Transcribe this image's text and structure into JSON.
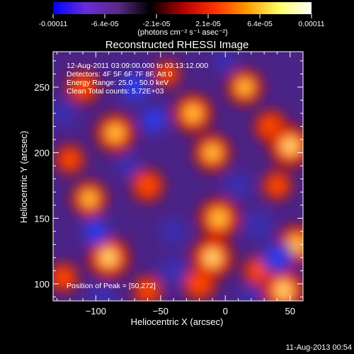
{
  "colorbar": {
    "tick_labels": [
      "-0.00011",
      "-6.4e-05",
      "-2.1e-05",
      "2.1e-05",
      "6.4e-05",
      "0.00011"
    ],
    "unit_label": "(photons cm⁻² s⁻¹ asec⁻²)",
    "colors": [
      "#0000ff",
      "#6a2bd8",
      "#5a2a8a",
      "#000000",
      "#b00000",
      "#ff3000",
      "#ff9a00",
      "#ffff66",
      "#ffffff"
    ]
  },
  "chart_data": {
    "type": "heatmap",
    "title": "Reconstructed RHESSI Image",
    "xlabel": "Heliocentric X (arcsec)",
    "ylabel": "Heliocentric Y (arcsec)",
    "xlim": [
      -133,
      60
    ],
    "ylim": [
      87,
      277
    ],
    "x_ticks": [
      -100,
      -50,
      0,
      50
    ],
    "y_ticks": [
      100,
      150,
      200,
      250
    ],
    "x_tick_labels": [
      "−100",
      "−50",
      "0",
      "50"
    ],
    "y_tick_labels": [
      "100",
      "150",
      "200",
      "250"
    ],
    "value_range": [
      -0.00011,
      0.00011
    ],
    "annotations": [
      "12-Aug-2011 03:09:00.000 to 03:13:12.000",
      "Detectors: 4F 5F 6F 7F 8F, Att 0",
      "Energy Range: 25.0 - 50.0 keV",
      "Clean     Total counts: 5.72E+03"
    ],
    "peak_label": "Position of Peak = [50,272]",
    "peak": [
      50,
      272
    ],
    "blobs": [
      {
        "x": -110,
        "y": 250,
        "a": 0.7
      },
      {
        "x": -85,
        "y": 215,
        "a": 0.9
      },
      {
        "x": -120,
        "y": 195,
        "a": 0.6
      },
      {
        "x": -105,
        "y": 165,
        "a": 0.8
      },
      {
        "x": -90,
        "y": 120,
        "a": 1.0
      },
      {
        "x": -125,
        "y": 105,
        "a": 0.6
      },
      {
        "x": -60,
        "y": 175,
        "a": 0.7
      },
      {
        "x": -45,
        "y": 260,
        "a": 0.5
      },
      {
        "x": -25,
        "y": 230,
        "a": 0.9
      },
      {
        "x": -10,
        "y": 200,
        "a": 0.85
      },
      {
        "x": -5,
        "y": 150,
        "a": 0.95
      },
      {
        "x": -10,
        "y": 120,
        "a": 1.0
      },
      {
        "x": -20,
        "y": 100,
        "a": 0.7
      },
      {
        "x": 15,
        "y": 250,
        "a": 0.8
      },
      {
        "x": 35,
        "y": 220,
        "a": 0.7
      },
      {
        "x": 50,
        "y": 205,
        "a": 1.0
      },
      {
        "x": 40,
        "y": 175,
        "a": 0.6
      },
      {
        "x": 55,
        "y": 130,
        "a": 0.9
      },
      {
        "x": 45,
        "y": 95,
        "a": 1.0
      },
      {
        "x": 25,
        "y": 110,
        "a": 0.6
      },
      {
        "x": -60,
        "y": 95,
        "a": 0.6
      },
      {
        "x": -40,
        "y": 140,
        "a": -0.6
      },
      {
        "x": -70,
        "y": 250,
        "a": -0.9
      },
      {
        "x": -55,
        "y": 225,
        "a": -0.8
      },
      {
        "x": -125,
        "y": 230,
        "a": -0.6
      },
      {
        "x": -100,
        "y": 140,
        "a": -0.8
      },
      {
        "x": -95,
        "y": 90,
        "a": -0.6
      },
      {
        "x": -40,
        "y": 110,
        "a": -0.7
      },
      {
        "x": 10,
        "y": 175,
        "a": -0.6
      },
      {
        "x": 25,
        "y": 145,
        "a": -0.7
      },
      {
        "x": 40,
        "y": 120,
        "a": -0.9
      },
      {
        "x": 20,
        "y": 90,
        "a": -0.5
      },
      {
        "x": 0,
        "y": 270,
        "a": -0.5
      },
      {
        "x": -75,
        "y": 190,
        "a": -0.5
      }
    ]
  },
  "footer": {
    "timestamp": "11-Aug-2013 00:54"
  }
}
